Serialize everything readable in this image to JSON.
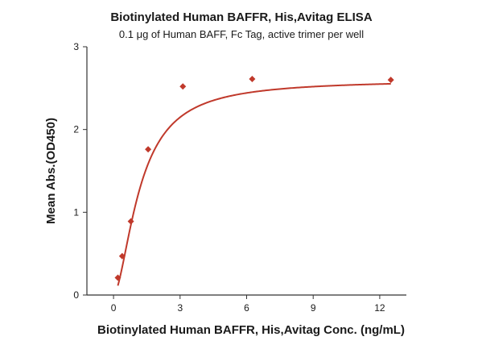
{
  "chart_data": {
    "type": "scatter",
    "title": "Biotinylated Human BAFFR, His,Avitag ELISA",
    "subtitle": "0.1 μg of Human BAFF, Fc Tag, active trimer per well",
    "xlabel": "Biotinylated Human BAFFR, His,Avitag Conc. (ng/mL)",
    "ylabel": "Mean Abs.(OD450)",
    "xlim": [
      -1.2,
      13.2
    ],
    "ylim": [
      0,
      3
    ],
    "xticks": [
      0,
      3,
      6,
      9,
      12
    ],
    "yticks": [
      0,
      1,
      2,
      3
    ],
    "grid": false,
    "legend": "none",
    "color": "#c0392b",
    "series": [
      {
        "points": [
          {
            "x": 0.195,
            "y": 0.21
          },
          {
            "x": 0.39,
            "y": 0.47
          },
          {
            "x": 0.78,
            "y": 0.89
          },
          {
            "x": 1.56,
            "y": 1.76
          },
          {
            "x": 3.125,
            "y": 2.52
          },
          {
            "x": 6.25,
            "y": 2.61
          },
          {
            "x": 12.5,
            "y": 2.6
          }
        ]
      }
    ],
    "fit_curve": {
      "model": "4PL",
      "bottom": 0,
      "top": 2.6,
      "ec50": 1.2,
      "hill": 1.7
    }
  }
}
